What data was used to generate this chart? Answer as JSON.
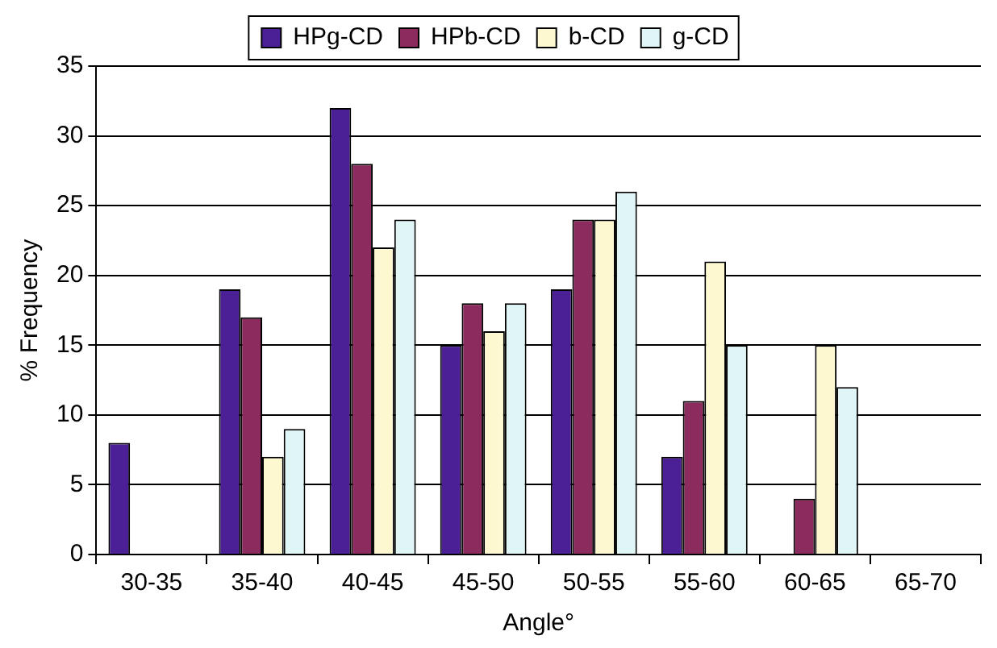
{
  "chart_data": {
    "type": "bar",
    "xlabel": "Angle°",
    "ylabel": "% Frequency",
    "categories": [
      "30-35",
      "35-40",
      "40-45",
      "45-50",
      "50-55",
      "55-60",
      "60-65",
      "65-70"
    ],
    "series": [
      {
        "name": "HPg-CD",
        "color": "#4b1f96",
        "values": [
          8,
          19,
          32,
          15,
          19,
          7,
          0,
          0
        ]
      },
      {
        "name": "HPb-CD",
        "color": "#8b2b5e",
        "values": [
          0,
          17,
          28,
          18,
          24,
          11,
          4,
          0
        ]
      },
      {
        "name": "b-CD",
        "color": "#fdf8d0",
        "values": [
          0,
          7,
          22,
          16,
          24,
          21,
          15,
          0
        ]
      },
      {
        "name": "g-CD",
        "color": "#e0f6f6",
        "values": [
          0,
          9,
          24,
          18,
          26,
          15,
          12,
          0
        ]
      }
    ],
    "ylim": [
      0,
      35
    ],
    "yticks": [
      0,
      5,
      10,
      15,
      20,
      25,
      30,
      35
    ],
    "grid": "y",
    "legend": "top"
  }
}
